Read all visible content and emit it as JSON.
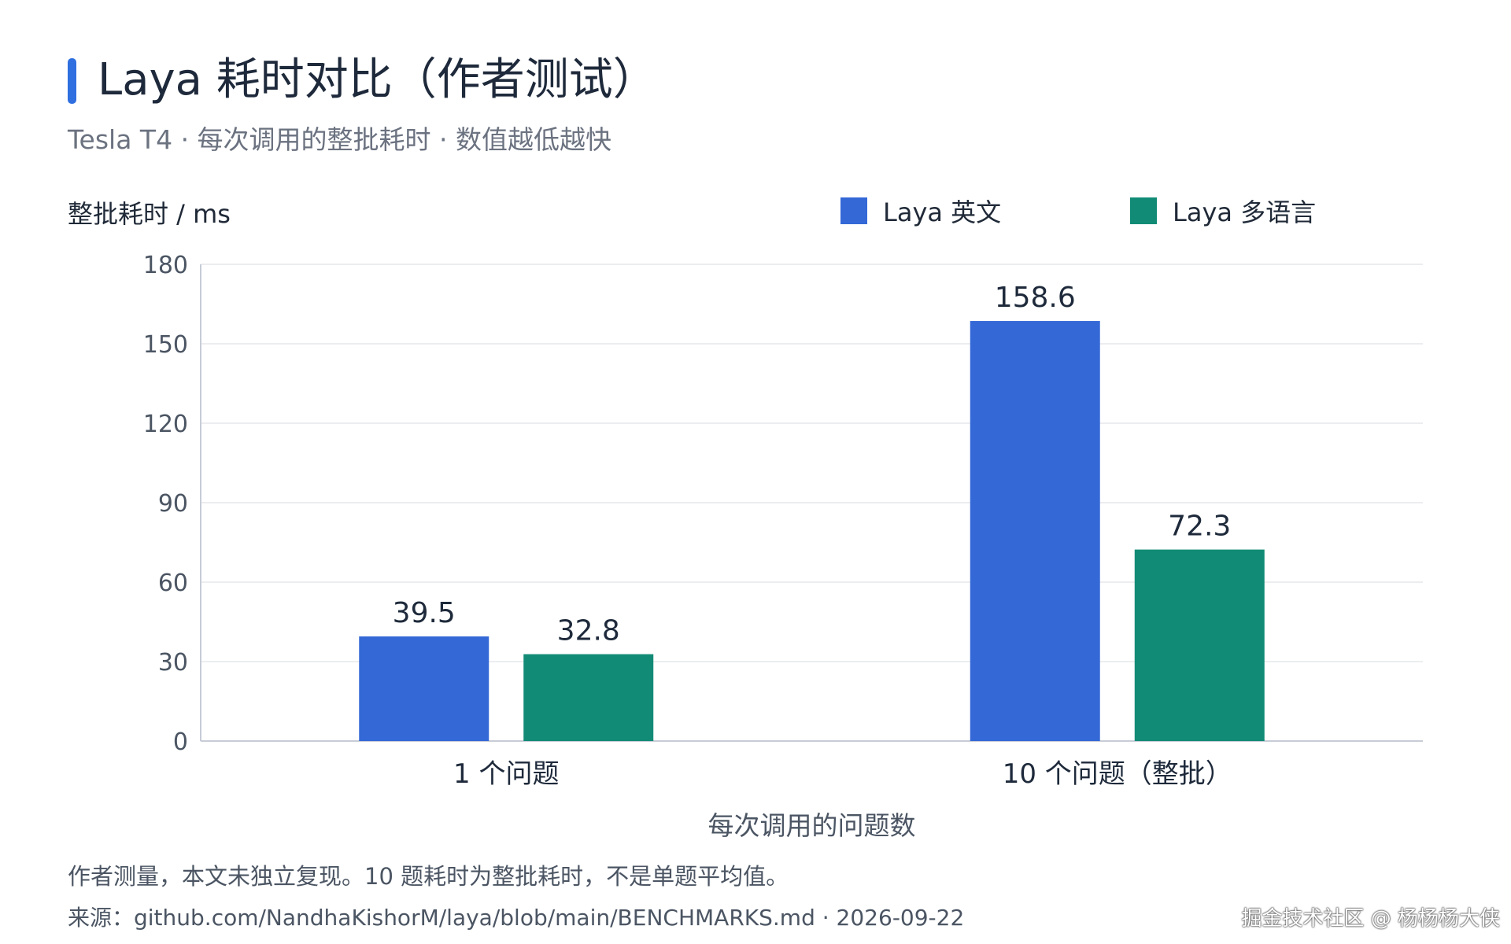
{
  "title": "Laya 耗时对比（作者测试）",
  "subtitle": "Tesla T4 · 每次调用的整批耗时 · 数值越低越快",
  "note": "作者测量，本文未独立复现。10 题耗时为整批耗时，不是单题平均值。",
  "source": "来源：github.com/NandhaKishorM/laya/blob/main/BENCHMARKS.md · 2026-09-22",
  "watermark": "掘金技术社区 @ 杨杨杨大侠",
  "colors": {
    "series_english": "#3468d6",
    "series_multilingual": "#128b76",
    "accent": "#2f6fe0",
    "grid": "#e5e7eb",
    "axis": "#c7ccd6",
    "tick_text": "#4b5563",
    "value_text": "#1e2a3b"
  },
  "chart_data": {
    "type": "bar",
    "title": "Laya 耗时对比（作者测试）",
    "subtitle": "Tesla T4 · 每次调用的整批耗时 · 数值越低越快",
    "xlabel": "每次调用的问题数",
    "ylabel": "整批耗时 / ms",
    "categories": [
      "1 个问题",
      "10 个问题（整批）"
    ],
    "series": [
      {
        "name": "Laya 英文",
        "values": [
          39.5,
          158.6
        ]
      },
      {
        "name": "Laya 多语言",
        "values": [
          32.8,
          72.3
        ]
      }
    ],
    "data_labels": [
      [
        "39.5",
        "158.6"
      ],
      [
        "32.8",
        "72.3"
      ]
    ],
    "ylim": [
      0,
      180
    ],
    "yticks": [
      0,
      30,
      60,
      90,
      120,
      150,
      180
    ],
    "grid": true,
    "legend_position": "top-right"
  }
}
